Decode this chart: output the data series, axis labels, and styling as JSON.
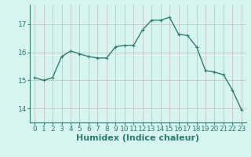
{
  "x": [
    0,
    1,
    2,
    3,
    4,
    5,
    6,
    7,
    8,
    9,
    10,
    11,
    12,
    13,
    14,
    15,
    16,
    17,
    18,
    19,
    20,
    21,
    22,
    23
  ],
  "y": [
    15.1,
    15.0,
    15.1,
    15.85,
    16.05,
    15.95,
    15.85,
    15.8,
    15.8,
    16.2,
    16.25,
    16.25,
    16.8,
    17.15,
    17.15,
    17.25,
    16.65,
    16.6,
    16.2,
    15.35,
    15.3,
    15.2,
    14.65,
    13.95
  ],
  "line_color": "#2e7d6e",
  "marker": "+",
  "marker_color": "#2e7d6e",
  "bg_color": "#d6f5f0",
  "grid_color": "#c8b8b8",
  "xlabel": "Humidex (Indice chaleur)",
  "xlabel_fontsize": 8,
  "yticks": [
    14,
    15,
    16,
    17
  ],
  "xticks": [
    0,
    1,
    2,
    3,
    4,
    5,
    6,
    7,
    8,
    9,
    10,
    11,
    12,
    13,
    14,
    15,
    16,
    17,
    18,
    19,
    20,
    21,
    22,
    23
  ],
  "ylim": [
    13.5,
    17.7
  ],
  "xlim": [
    -0.5,
    23.5
  ],
  "tick_fontsize": 6.5,
  "line_width": 1.0,
  "marker_size": 3.5
}
